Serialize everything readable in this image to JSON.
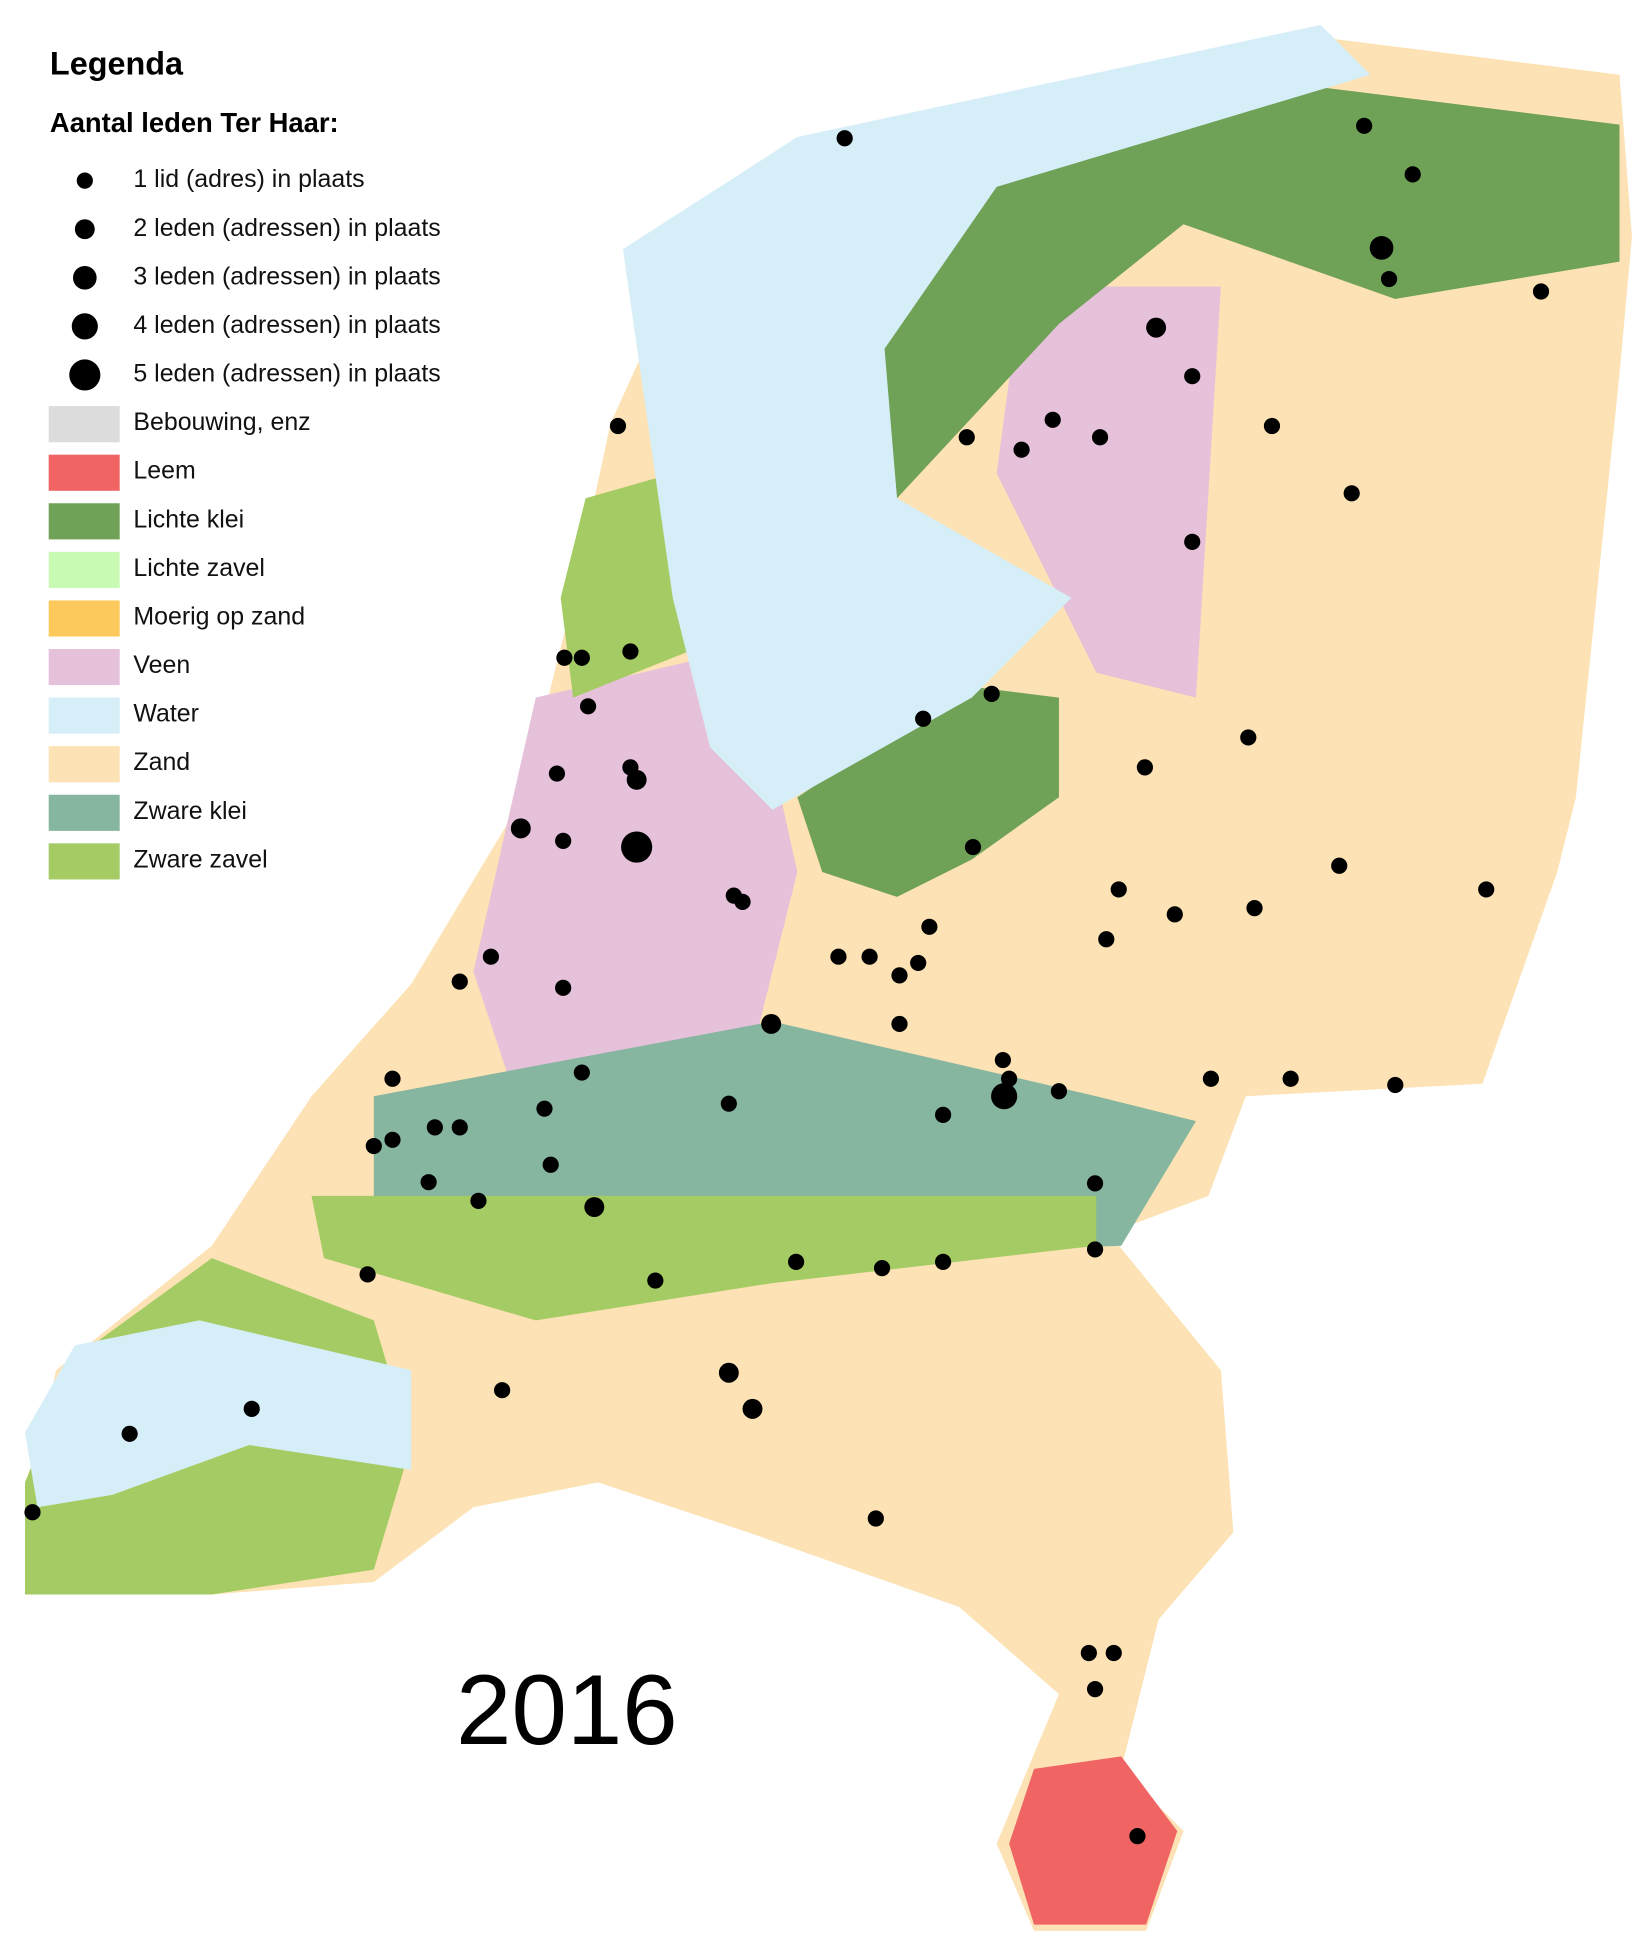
{
  "legend": {
    "title": "Legenda",
    "subtitle": "Aantal leden Ter Haar:",
    "sizes": [
      "1 lid (adres) in plaats",
      "2 leden (adressen) in plaats",
      "3 leden (adressen) in plaats",
      "4 leden (adressen) in plaats",
      "5 leden (adressen) in plaats"
    ],
    "classes": [
      {
        "label": "Bebouwing, enz",
        "color": "#dcdcdc"
      },
      {
        "label": "Leem",
        "color": "#f06464"
      },
      {
        "label": "Lichte klei",
        "color": "#6fa157"
      },
      {
        "label": "Lichte zavel",
        "color": "#c8fab4"
      },
      {
        "label": "Moerig op zand",
        "color": "#fdc95c"
      },
      {
        "label": "Veen",
        "color": "#e5c1da"
      },
      {
        "label": "Water",
        "color": "#d6eef8"
      },
      {
        "label": "Zand",
        "color": "#fce2b4"
      },
      {
        "label": "Zware klei",
        "color": "#86b5a0"
      },
      {
        "label": "Zware zavel",
        "color": "#a5cc64"
      }
    ]
  },
  "year": "2016"
}
